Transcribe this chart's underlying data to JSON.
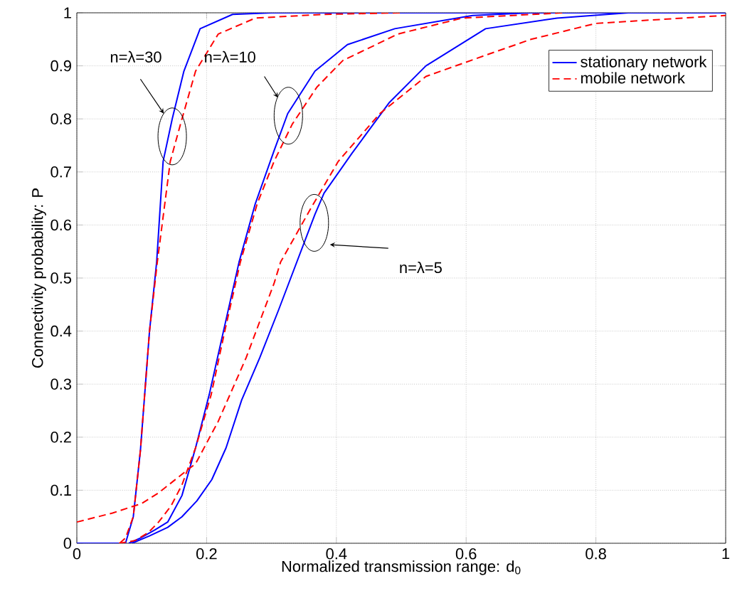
{
  "chart_data": {
    "type": "line",
    "xlabel": "Normalized transmission range: d$_{0}$",
    "ylabel": "Connectivity probability: P",
    "xlim": [
      0,
      1
    ],
    "ylim": [
      0,
      1
    ],
    "xticks": [
      0,
      0.2,
      0.4,
      0.6,
      0.8,
      1
    ],
    "yticks": [
      0,
      0.1,
      0.2,
      0.3,
      0.4,
      0.5,
      0.6,
      0.7,
      0.8,
      0.9,
      1
    ],
    "grid": true,
    "legend": "top right",
    "marker": "none",
    "series": [
      {
        "name": "stationary network",
        "color": "#0000ff",
        "line_style": "solid",
        "x": [
          0,
          0.075,
          0.087,
          0.098,
          0.112,
          0.123,
          0.133,
          0.147,
          0.165,
          0.19,
          0.24,
          0.3,
          1
        ],
        "values": [
          0,
          0,
          0.05,
          0.175,
          0.4,
          0.53,
          0.72,
          0.8,
          0.89,
          0.97,
          0.997,
          1,
          1
        ]
      },
      {
        "name": "mobile network",
        "color": "#ff0000",
        "line_style": "dashed",
        "x": [
          0.066,
          0.075,
          0.087,
          0.098,
          0.112,
          0.124,
          0.144,
          0.162,
          0.183,
          0.218,
          0.275,
          0.38,
          0.5
        ],
        "values": [
          0,
          0.01,
          0.05,
          0.175,
          0.4,
          0.53,
          0.72,
          0.8,
          0.89,
          0.96,
          0.99,
          0.997,
          1
        ]
      },
      {
        "color": "#0000ff",
        "line_style": "solid",
        "x": [
          0.08,
          0.098,
          0.12,
          0.14,
          0.162,
          0.183,
          0.204,
          0.226,
          0.25,
          0.275,
          0.304,
          0.325,
          0.367,
          0.417,
          0.49,
          0.61,
          0.7
        ],
        "values": [
          0,
          0.01,
          0.025,
          0.04,
          0.09,
          0.18,
          0.28,
          0.4,
          0.53,
          0.64,
          0.74,
          0.81,
          0.89,
          0.94,
          0.97,
          0.995,
          1
        ]
      },
      {
        "color": "#ff0000",
        "line_style": "dashed",
        "x": [
          0.065,
          0.09,
          0.11,
          0.126,
          0.145,
          0.162,
          0.183,
          0.207,
          0.228,
          0.252,
          0.278,
          0.304,
          0.332,
          0.37,
          0.41,
          0.495,
          0.594,
          0.75
        ],
        "values": [
          0,
          0.005,
          0.02,
          0.04,
          0.07,
          0.11,
          0.18,
          0.28,
          0.4,
          0.53,
          0.64,
          0.72,
          0.79,
          0.86,
          0.91,
          0.96,
          0.99,
          1
        ]
      },
      {
        "color": "#0000ff",
        "line_style": "solid",
        "x": [
          0.085,
          0.112,
          0.14,
          0.162,
          0.185,
          0.208,
          0.23,
          0.254,
          0.282,
          0.311,
          0.339,
          0.367,
          0.381,
          0.424,
          0.481,
          0.538,
          0.63,
          0.74,
          0.85
        ],
        "values": [
          0,
          0.014,
          0.03,
          0.05,
          0.08,
          0.12,
          0.18,
          0.27,
          0.35,
          0.44,
          0.53,
          0.62,
          0.66,
          0.735,
          0.83,
          0.9,
          0.97,
          0.99,
          1
        ]
      },
      {
        "color": "#ff0000",
        "line_style": "dashed",
        "x": [
          0,
          0.055,
          0.1,
          0.126,
          0.162,
          0.183,
          0.218,
          0.261,
          0.304,
          0.314,
          0.36,
          0.403,
          0.467,
          0.538,
          0.63,
          0.7,
          0.8,
          1
        ],
        "values": [
          0.04,
          0.057,
          0.075,
          0.095,
          0.13,
          0.15,
          0.23,
          0.35,
          0.49,
          0.53,
          0.63,
          0.72,
          0.81,
          0.88,
          0.92,
          0.95,
          0.98,
          0.995
        ]
      }
    ],
    "annotations": [
      "n=λ=30",
      "n=λ=10",
      "n=λ=5"
    ]
  }
}
